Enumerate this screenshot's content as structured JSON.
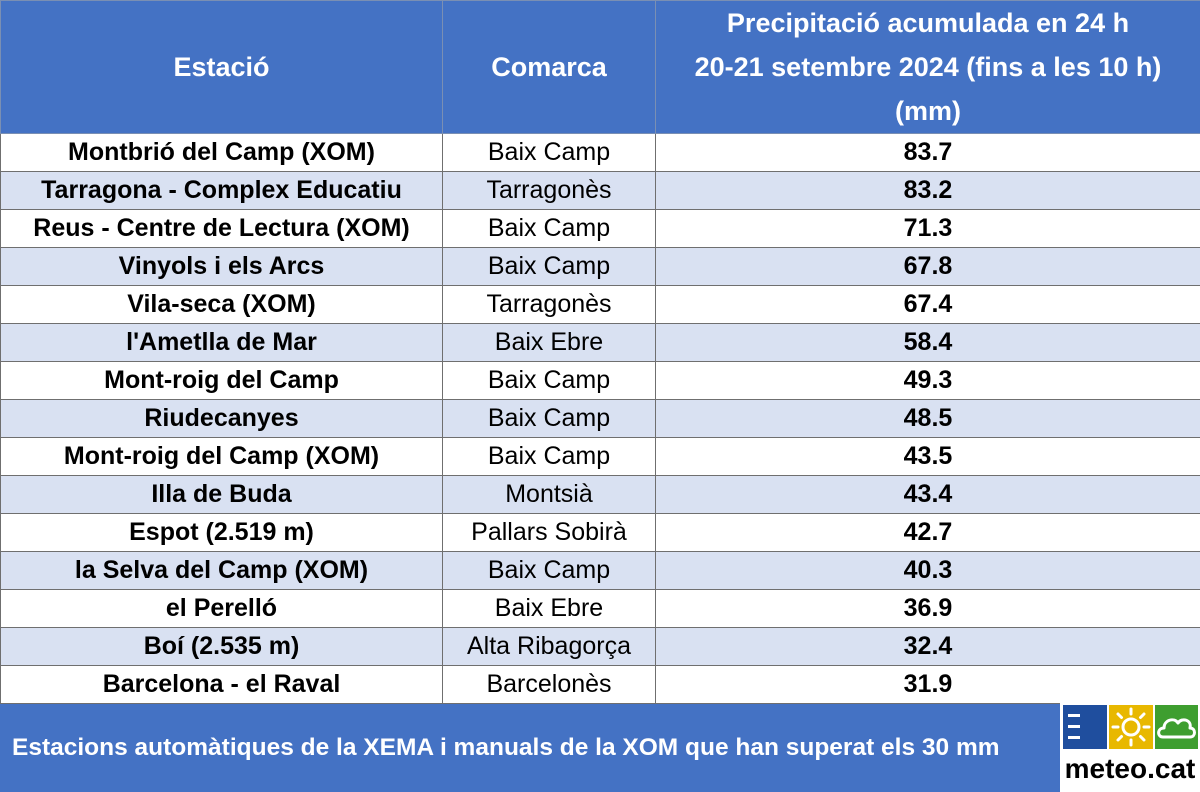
{
  "table": {
    "headers": {
      "station": "Estació",
      "county": "Comarca",
      "value_lines": [
        "Precipitació acumulada en  24 h",
        "20-21 setembre 2024 (fins a les 10 h)",
        "(mm)"
      ]
    },
    "rows": [
      {
        "station": "Montbrió del Camp (XOM)",
        "county": "Baix Camp",
        "value": "83.7"
      },
      {
        "station": "Tarragona - Complex Educatiu",
        "county": "Tarragonès",
        "value": "83.2"
      },
      {
        "station": "Reus - Centre de Lectura (XOM)",
        "county": "Baix Camp",
        "value": "71.3"
      },
      {
        "station": "Vinyols i els Arcs",
        "county": "Baix Camp",
        "value": "67.8"
      },
      {
        "station": "Vila-seca (XOM)",
        "county": "Tarragonès",
        "value": "67.4"
      },
      {
        "station": "l'Ametlla de Mar",
        "county": "Baix Ebre",
        "value": "58.4"
      },
      {
        "station": "Mont-roig del Camp",
        "county": "Baix Camp",
        "value": "49.3"
      },
      {
        "station": "Riudecanyes",
        "county": "Baix Camp",
        "value": "48.5"
      },
      {
        "station": "Mont-roig del Camp (XOM)",
        "county": "Baix Camp",
        "value": "43.5"
      },
      {
        "station": "Illa de Buda",
        "county": "Montsià",
        "value": "43.4"
      },
      {
        "station": "Espot (2.519 m)",
        "county": "Pallars Sobirà",
        "value": "42.7"
      },
      {
        "station": "la Selva del Camp (XOM)",
        "county": "Baix Camp",
        "value": "40.3"
      },
      {
        "station": "el Perelló",
        "county": "Baix Ebre",
        "value": "36.9"
      },
      {
        "station": "Boí (2.535 m)",
        "county": "Alta Ribagorça",
        "value": "32.4"
      },
      {
        "station": "Barcelona - el Raval",
        "county": "Barcelonès",
        "value": "31.9"
      }
    ]
  },
  "footer": {
    "text": "Estacions automàtiques de la XEMA i manuals de la XOM que han superat els 30 mm"
  },
  "logo": {
    "text": "meteo.cat",
    "icons": [
      "menu-lines-icon",
      "sun-icon",
      "cloud-icon"
    ]
  },
  "colors": {
    "header_blue": "#4472c4",
    "row_stripe": "#d9e1f2",
    "logo_blue": "#1f4e9e",
    "logo_yellow": "#e8b800",
    "logo_green": "#3e9e2f"
  }
}
